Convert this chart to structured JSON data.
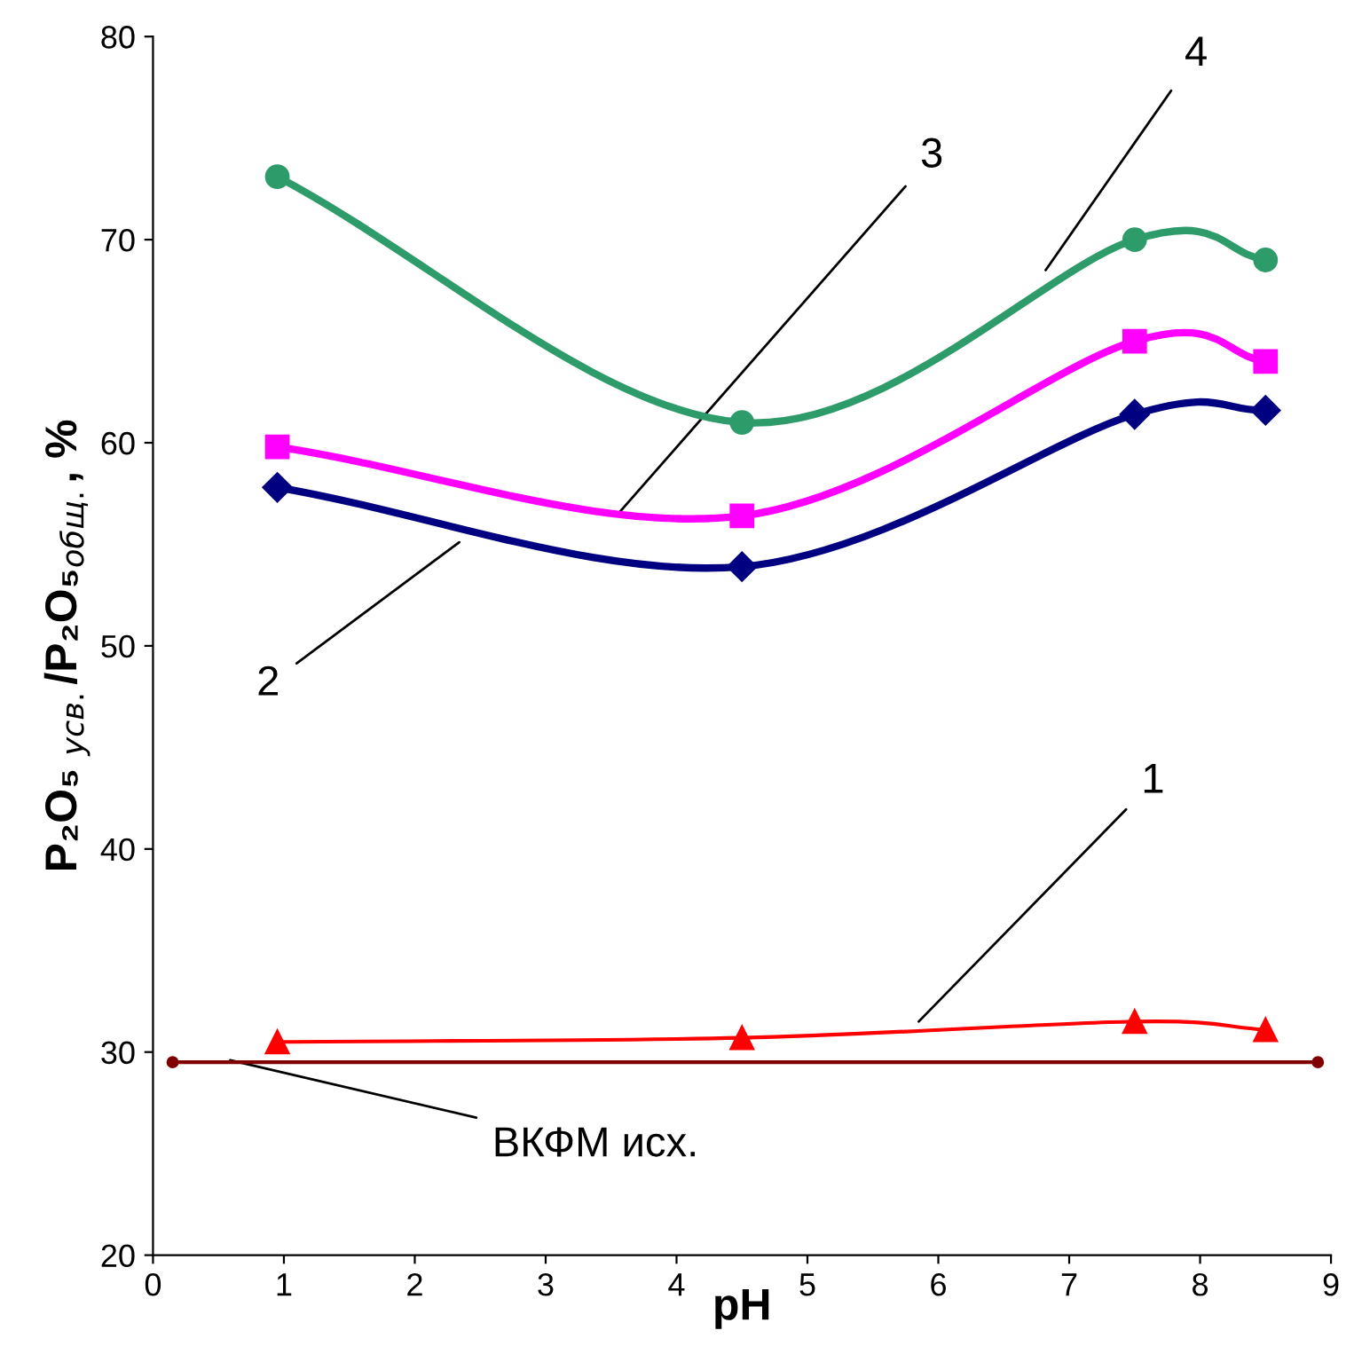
{
  "chart_data": {
    "type": "line",
    "xlabel": "pH",
    "ylabel": "P₂O₅ $_{усв.}$/P₂O₅$_{общ.}$, %",
    "xlim": [
      0,
      9
    ],
    "ylim": [
      20,
      80
    ],
    "xticks": [
      0,
      1,
      2,
      3,
      4,
      5,
      6,
      7,
      8,
      9
    ],
    "yticks": [
      20,
      30,
      40,
      50,
      60,
      70,
      80
    ],
    "grid": false,
    "legend": false,
    "series": [
      {
        "name": "1",
        "color": "#ff0000",
        "marker": "triangle",
        "x": [
          0.95,
          4.5,
          7.5,
          8.5
        ],
        "values": [
          30.5,
          30.7,
          31.5,
          31.1
        ]
      },
      {
        "name": "2",
        "color": "#000080",
        "marker": "diamond",
        "x": [
          0.95,
          4.5,
          7.5,
          8.5
        ],
        "values": [
          57.8,
          53.9,
          61.4,
          61.6
        ]
      },
      {
        "name": "3",
        "color": "#ff00ff",
        "marker": "square",
        "x": [
          0.95,
          4.5,
          7.5,
          8.5
        ],
        "values": [
          59.8,
          56.4,
          65.0,
          64.0
        ]
      },
      {
        "name": "4",
        "color": "#2e9b6b",
        "marker": "circle",
        "x": [
          0.95,
          4.5,
          7.5,
          8.5
        ],
        "values": [
          73.1,
          61.0,
          70.0,
          69.0
        ]
      },
      {
        "name": "ВКФМ исх.",
        "color": "#800000",
        "marker": "circle",
        "x": [
          0.15,
          8.9
        ],
        "values": [
          29.5,
          29.5
        ]
      }
    ]
  }
}
